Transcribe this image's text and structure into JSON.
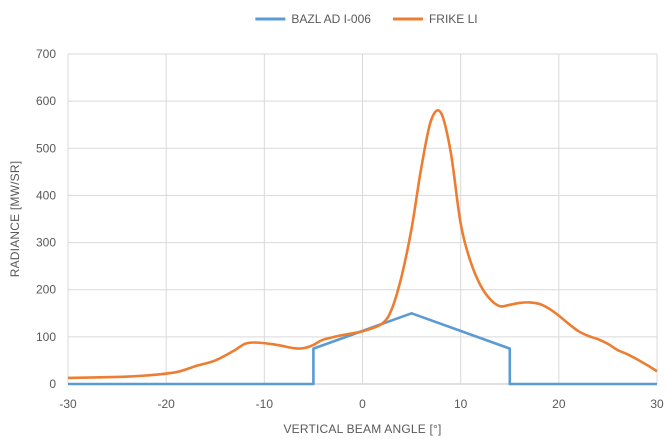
{
  "chart_data": {
    "type": "line",
    "title": "",
    "xlabel": "VERTICAL BEAM ANGLE [°]",
    "ylabel": "RADIANCE [MW/SR]",
    "xlim": [
      -30,
      30
    ],
    "ylim": [
      0,
      700
    ],
    "xticks": [
      -30,
      -20,
      -10,
      0,
      10,
      20,
      30
    ],
    "yticks": [
      0,
      100,
      200,
      300,
      400,
      500,
      600,
      700
    ],
    "grid": true,
    "legend": "top",
    "series": [
      {
        "name": "BAZL AD I-006",
        "color": "#5b9bd5",
        "smooth": false,
        "points": [
          [
            -30,
            0
          ],
          [
            -5,
            0
          ],
          [
            -5,
            75
          ],
          [
            5,
            150
          ],
          [
            15,
            75
          ],
          [
            15,
            0
          ],
          [
            30,
            0
          ]
        ]
      },
      {
        "name": "FRIKE LI",
        "color": "#ed7d31",
        "smooth": true,
        "points": [
          [
            -30,
            13
          ],
          [
            -25,
            15
          ],
          [
            -22,
            18
          ],
          [
            -19,
            25
          ],
          [
            -17,
            38
          ],
          [
            -15,
            50
          ],
          [
            -13,
            72
          ],
          [
            -12,
            85
          ],
          [
            -11,
            88
          ],
          [
            -9,
            84
          ],
          [
            -7,
            76
          ],
          [
            -6,
            76
          ],
          [
            -5,
            83
          ],
          [
            -4,
            94
          ],
          [
            -2,
            104
          ],
          [
            0,
            112
          ],
          [
            2,
            128
          ],
          [
            3,
            160
          ],
          [
            4,
            230
          ],
          [
            5,
            330
          ],
          [
            6,
            460
          ],
          [
            7,
            560
          ],
          [
            8,
            575
          ],
          [
            9,
            490
          ],
          [
            10,
            340
          ],
          [
            11,
            260
          ],
          [
            12,
            210
          ],
          [
            13,
            180
          ],
          [
            14,
            165
          ],
          [
            15,
            168
          ],
          [
            16,
            172
          ],
          [
            17,
            173
          ],
          [
            18,
            170
          ],
          [
            19,
            160
          ],
          [
            20,
            145
          ],
          [
            21,
            128
          ],
          [
            22,
            112
          ],
          [
            23,
            102
          ],
          [
            24,
            95
          ],
          [
            25,
            85
          ],
          [
            26,
            72
          ],
          [
            27,
            63
          ],
          [
            28,
            52
          ],
          [
            29,
            40
          ],
          [
            30,
            27
          ]
        ]
      }
    ]
  }
}
